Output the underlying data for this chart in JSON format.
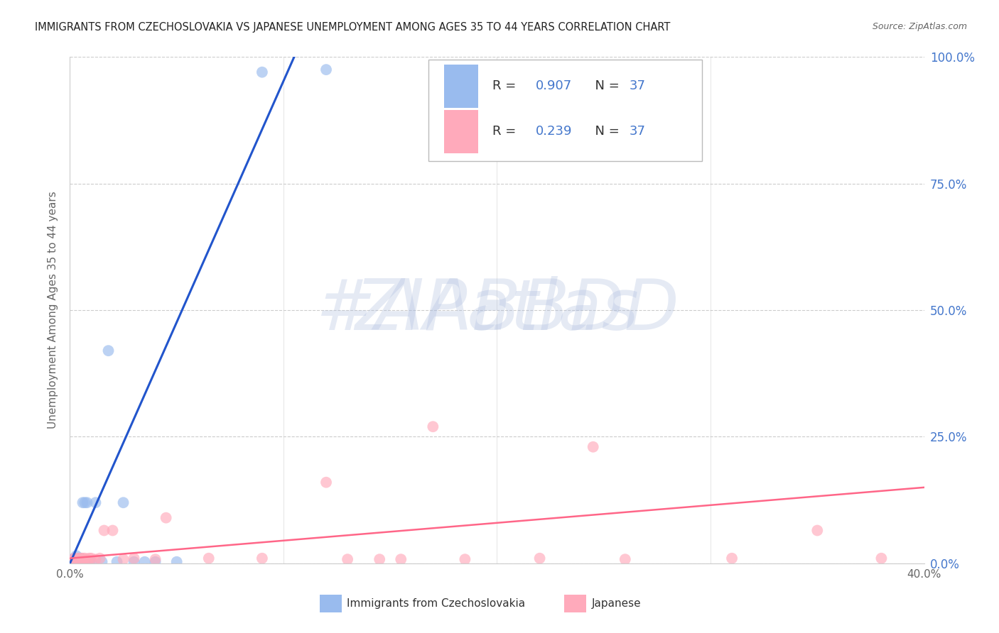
{
  "title": "IMMIGRANTS FROM CZECHOSLOVAKIA VS JAPANESE UNEMPLOYMENT AMONG AGES 35 TO 44 YEARS CORRELATION CHART",
  "source": "Source: ZipAtlas.com",
  "ylabel": "Unemployment Among Ages 35 to 44 years",
  "xlim": [
    0.0,
    0.4
  ],
  "ylim": [
    0.0,
    1.0
  ],
  "yticks": [
    0.0,
    0.25,
    0.5,
    0.75,
    1.0
  ],
  "ytick_labels_right": [
    "0.0%",
    "25.0%",
    "50.0%",
    "75.0%",
    "100.0%"
  ],
  "xtick_left_label": "0.0%",
  "xtick_right_label": "40.0%",
  "legend_r1_label": "R = ",
  "legend_r1_val": "0.907",
  "legend_n1_label": "   N = ",
  "legend_n1_val": "37",
  "legend_r2_label": "R = ",
  "legend_r2_val": "0.239",
  "legend_n2_label": "   N = ",
  "legend_n2_val": "37",
  "color_blue": "#99BBEE",
  "color_pink": "#FFAABB",
  "color_blue_line": "#2255CC",
  "color_pink_line": "#FF6688",
  "color_blue_text": "#4477CC",
  "color_black_text": "#333333",
  "color_gray_text": "#666666",
  "color_title": "#222222",
  "scatter_blue_x": [
    0.001,
    0.001,
    0.002,
    0.002,
    0.002,
    0.002,
    0.003,
    0.003,
    0.003,
    0.003,
    0.003,
    0.004,
    0.004,
    0.004,
    0.004,
    0.005,
    0.005,
    0.005,
    0.006,
    0.006,
    0.007,
    0.007,
    0.008,
    0.009,
    0.01,
    0.012,
    0.015,
    0.018,
    0.022,
    0.025,
    0.03,
    0.035,
    0.04,
    0.05,
    0.09,
    0.12,
    0.18
  ],
  "scatter_blue_y": [
    0.0,
    0.005,
    0.0,
    0.003,
    0.006,
    0.01,
    0.0,
    0.003,
    0.006,
    0.01,
    0.015,
    0.0,
    0.003,
    0.006,
    0.01,
    0.0,
    0.003,
    0.01,
    0.003,
    0.12,
    0.003,
    0.12,
    0.12,
    0.003,
    0.003,
    0.12,
    0.003,
    0.42,
    0.003,
    0.12,
    0.003,
    0.003,
    0.003,
    0.003,
    0.97,
    0.975,
    0.975
  ],
  "scatter_pink_x": [
    0.001,
    0.002,
    0.002,
    0.003,
    0.003,
    0.004,
    0.004,
    0.005,
    0.005,
    0.006,
    0.006,
    0.007,
    0.008,
    0.009,
    0.01,
    0.012,
    0.014,
    0.016,
    0.02,
    0.025,
    0.03,
    0.04,
    0.045,
    0.065,
    0.09,
    0.12,
    0.13,
    0.145,
    0.155,
    0.17,
    0.185,
    0.22,
    0.245,
    0.26,
    0.31,
    0.35,
    0.38
  ],
  "scatter_pink_y": [
    0.005,
    0.005,
    0.01,
    0.005,
    0.01,
    0.005,
    0.01,
    0.005,
    0.01,
    0.005,
    0.01,
    0.01,
    0.008,
    0.01,
    0.01,
    0.008,
    0.01,
    0.065,
    0.065,
    0.008,
    0.01,
    0.008,
    0.09,
    0.01,
    0.01,
    0.16,
    0.008,
    0.008,
    0.008,
    0.27,
    0.008,
    0.01,
    0.23,
    0.008,
    0.01,
    0.065,
    0.01
  ],
  "blue_line_x": [
    0.0,
    0.105
  ],
  "blue_line_y": [
    0.0,
    1.0
  ],
  "pink_line_x": [
    0.0,
    0.4
  ],
  "pink_line_y": [
    0.01,
    0.15
  ],
  "legend1_label": "Immigrants from Czechoslovakia",
  "legend2_label": "Japanese",
  "background_color": "#FFFFFF",
  "grid_color": "#CCCCCC",
  "watermark_color": "#AABBDD",
  "watermark_alpha": 0.3,
  "watermark_font_size": 72
}
